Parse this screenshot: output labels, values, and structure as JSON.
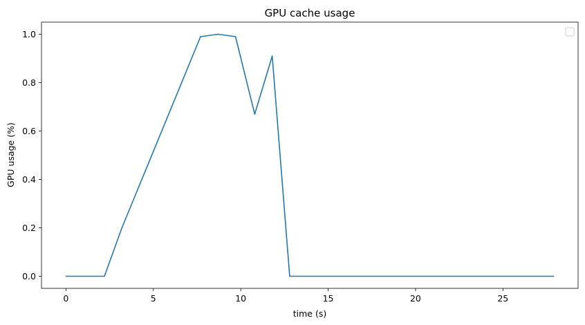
{
  "chart_data": {
    "type": "line",
    "title": "GPU cache usage",
    "xlabel": "time (s)",
    "ylabel": "GPU usage (%)",
    "xlim": [
      -1.4,
      29.3
    ],
    "ylim": [
      -0.05,
      1.05
    ],
    "xticks": [
      0,
      5,
      10,
      15,
      20,
      25
    ],
    "yticks": [
      0.0,
      0.2,
      0.4,
      0.6,
      0.8,
      1.0
    ],
    "xtick_labels": [
      "0",
      "5",
      "10",
      "15",
      "20",
      "25"
    ],
    "ytick_labels": [
      "0.0",
      "0.2",
      "0.4",
      "0.6",
      "0.8",
      "1.0"
    ],
    "legend": "top-right, empty",
    "grid": false,
    "series": [
      {
        "color": "#1f77b4",
        "x": [
          0.0,
          2.2,
          3.2,
          7.7,
          8.7,
          9.7,
          10.8,
          11.8,
          12.8,
          27.9
        ],
        "y": [
          0.0,
          0.0,
          0.2,
          0.99,
          1.0,
          0.99,
          0.67,
          0.91,
          0.0,
          0.0
        ]
      }
    ]
  }
}
